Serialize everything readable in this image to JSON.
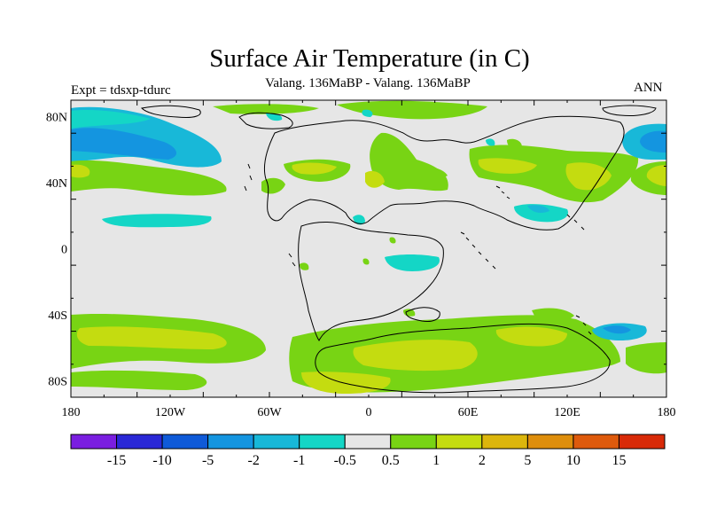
{
  "title": "Surface Air Temperature (in C)",
  "subtitle": "Valang. 136MaBP - Valang.  136MaBP",
  "left_label": "Expt = tdsxp-tdurc",
  "right_label": "ANN",
  "map": {
    "lat_labels": [
      "80N",
      "40N",
      "0",
      "40S",
      "80S"
    ],
    "lon_labels": [
      "180",
      "120W",
      "60W",
      "0",
      "60E",
      "120E",
      "180"
    ],
    "background_color": "#e6e6e6",
    "coast_color": "#000000"
  },
  "colorbar": {
    "colors": [
      "#7a1ee0",
      "#2a28d6",
      "#0f5ad8",
      "#1495e0",
      "#18b8d8",
      "#14d6c6",
      "#e6e6e6",
      "#78d414",
      "#c4dc10",
      "#dcb60c",
      "#de8e0c",
      "#de5a0c",
      "#d82a08"
    ],
    "labels": [
      "-15",
      "-10",
      "-5",
      "-2",
      "-1",
      "-0.5",
      "0.5",
      "1",
      "2",
      "5",
      "10",
      "15"
    ]
  }
}
